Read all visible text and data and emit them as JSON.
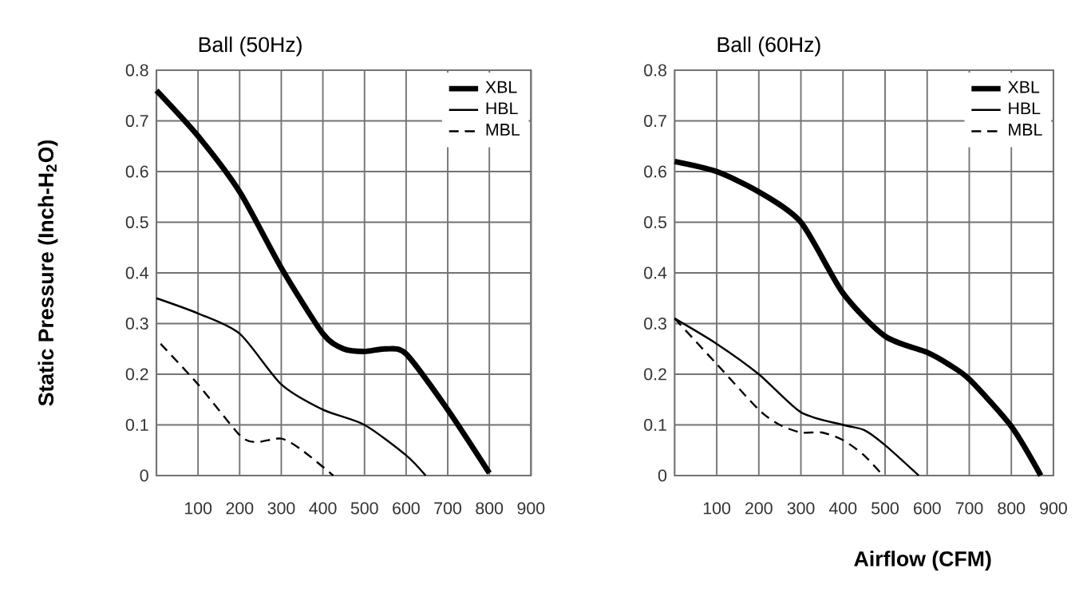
{
  "chart_data": [
    {
      "type": "line",
      "title": "Ball (50Hz)",
      "ylabel": "Static Pressure (Inch-H$_{2}$O)",
      "xlim": [
        0,
        900
      ],
      "ylim": [
        0,
        0.8
      ],
      "xticks": [
        100,
        200,
        300,
        400,
        500,
        600,
        700,
        800,
        900
      ],
      "yticks": [
        0,
        0.1,
        0.2,
        0.3,
        0.4,
        0.5,
        0.6,
        0.7,
        0.8
      ],
      "grid": true,
      "legend": "top right",
      "series": [
        {
          "name": "XBL",
          "color": "#000000",
          "line_style": "solid",
          "x": [
            0,
            100,
            200,
            300,
            400,
            450,
            500,
            550,
            600,
            700,
            800
          ],
          "values": [
            0.76,
            0.67,
            0.56,
            0.41,
            0.28,
            0.25,
            0.245,
            0.25,
            0.24,
            0.13,
            0.005
          ]
        },
        {
          "name": "HBL",
          "color": "#000000",
          "line_style": "solid",
          "x": [
            0,
            100,
            200,
            300,
            400,
            500,
            600,
            647
          ],
          "values": [
            0.35,
            0.32,
            0.28,
            0.18,
            0.13,
            0.1,
            0.04,
            0
          ]
        },
        {
          "name": "MBL",
          "color": "#000000",
          "line_style": "dashed",
          "x": [
            10,
            100,
            200,
            240,
            300,
            350,
            425
          ],
          "values": [
            0.26,
            0.18,
            0.08,
            0.066,
            0.073,
            0.05,
            0
          ]
        }
      ]
    },
    {
      "type": "line",
      "title": "Ball (60Hz)",
      "xlabel": "Airflow (CFM)",
      "xlim": [
        0,
        900
      ],
      "ylim": [
        0,
        0.8
      ],
      "xticks": [
        100,
        200,
        300,
        400,
        500,
        600,
        700,
        800,
        900
      ],
      "yticks": [
        0,
        0.1,
        0.2,
        0.3,
        0.4,
        0.5,
        0.6,
        0.7,
        0.8
      ],
      "grid": true,
      "legend": "top right",
      "series": [
        {
          "name": "XBL",
          "color": "#000000",
          "line_style": "solid",
          "x": [
            0,
            100,
            200,
            300,
            400,
            500,
            600,
            650,
            700,
            800,
            870
          ],
          "values": [
            0.62,
            0.6,
            0.56,
            0.5,
            0.36,
            0.275,
            0.243,
            0.22,
            0.19,
            0.097,
            0
          ]
        },
        {
          "name": "HBL",
          "color": "#000000",
          "line_style": "solid",
          "x": [
            0,
            100,
            200,
            300,
            400,
            450,
            500,
            580
          ],
          "values": [
            0.31,
            0.26,
            0.2,
            0.125,
            0.1,
            0.09,
            0.06,
            0
          ]
        },
        {
          "name": "MBL",
          "color": "#000000",
          "line_style": "dashed",
          "x": [
            0,
            100,
            200,
            250,
            300,
            350,
            400,
            450,
            495
          ],
          "values": [
            0.31,
            0.22,
            0.13,
            0.1,
            0.085,
            0.085,
            0.07,
            0.04,
            0
          ]
        }
      ]
    }
  ]
}
